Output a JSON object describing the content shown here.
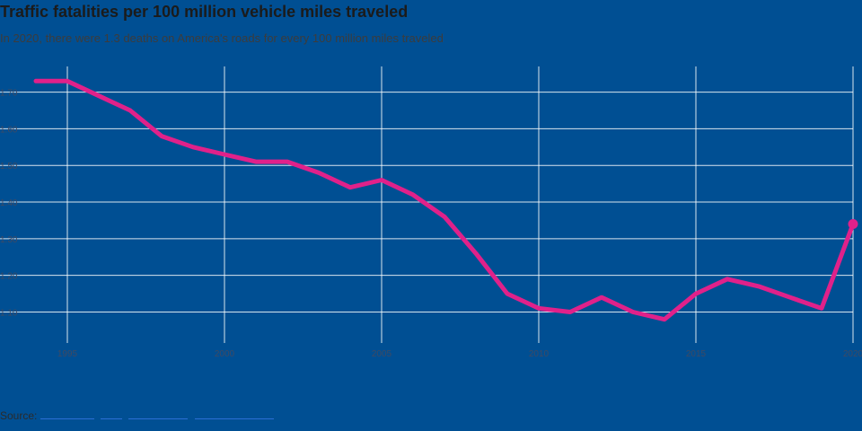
{
  "title": "Traffic fatalities per 100 million vehicle miles traveled",
  "subtitle": "In 2020, there were 1.3 deaths on America's roads for every 100 million miles traveled",
  "source_label": "Source:",
  "colors": {
    "background": "#004f93",
    "line": "#e0218a",
    "grid": "#ffffff",
    "tick_text": "#3f4a63"
  },
  "chart_data": {
    "type": "line",
    "title": "Traffic fatalities per 100 million vehicle miles traveled",
    "subtitle": "In 2020, there were 1.3 deaths on America's roads for every 100 million miles traveled",
    "xlabel": "",
    "ylabel": "",
    "x": [
      1994,
      1995,
      1996,
      1997,
      1998,
      1999,
      2000,
      2001,
      2002,
      2003,
      2004,
      2005,
      2006,
      2007,
      2008,
      2009,
      2010,
      2011,
      2012,
      2013,
      2014,
      2015,
      2016,
      2017,
      2018,
      2019,
      2020
    ],
    "series": [
      {
        "values": [
          1.73,
          1.73,
          1.69,
          1.65,
          1.58,
          1.55,
          1.53,
          1.51,
          1.51,
          1.48,
          1.44,
          1.46,
          1.42,
          1.36,
          1.26,
          1.15,
          1.11,
          1.1,
          1.14,
          1.1,
          1.08,
          1.15,
          1.19,
          1.17,
          1.14,
          1.11,
          1.34
        ]
      }
    ],
    "xlim": [
      1994,
      2020
    ],
    "ylim": [
      1.04,
      1.77
    ],
    "x_ticks": [
      1995,
      2000,
      2005,
      2010,
      2015,
      2020
    ],
    "x_tick_labels": [
      "1995",
      "2000",
      "2005",
      "2010",
      "2015",
      "2020"
    ],
    "y_ticks": [
      1.1,
      1.2,
      1.3,
      1.4,
      1.5,
      1.6,
      1.7
    ],
    "y_tick_labels": [
      "1.10",
      "1.20",
      "1.30",
      "1.40",
      "1.50",
      "1.60",
      "1.70"
    ],
    "grid": true,
    "legend": "none",
    "end_marker": true
  }
}
